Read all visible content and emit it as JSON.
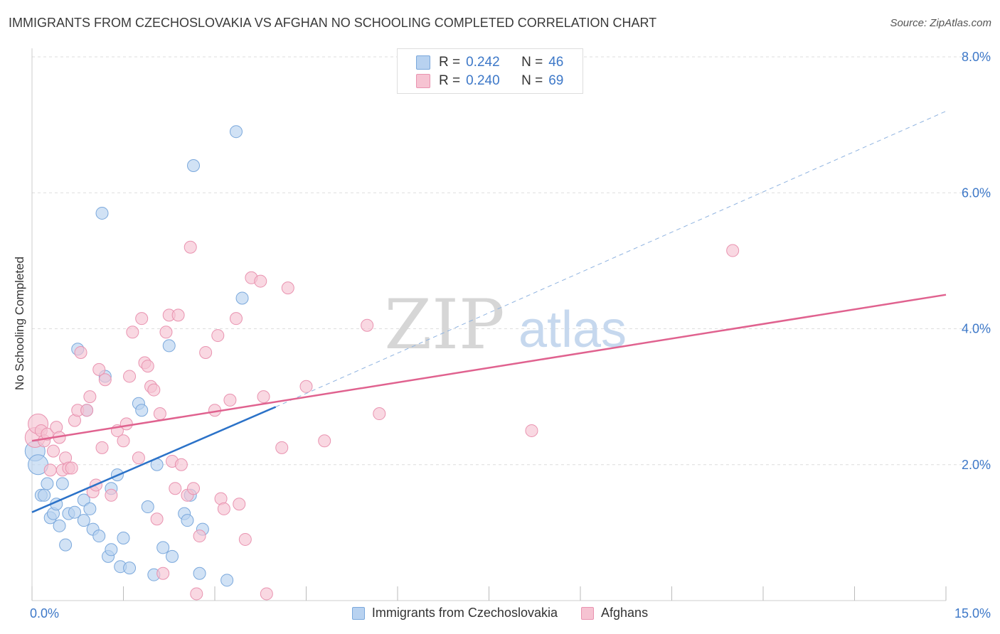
{
  "title": "IMMIGRANTS FROM CZECHOSLOVAKIA VS AFGHAN NO SCHOOLING COMPLETED CORRELATION CHART",
  "source": "Source: ZipAtlas.com",
  "watermark": {
    "zip": "ZIP",
    "atlas": "atlas"
  },
  "colors": {
    "blue_fill": "#b8d2f0",
    "blue_stroke": "#7aa8dc",
    "blue_line": "#2b72c8",
    "pink_fill": "#f6c3d2",
    "pink_stroke": "#e993b0",
    "pink_line": "#e0628f",
    "tick_text": "#3d78c8",
    "grid": "#dddddd"
  },
  "chart_data": {
    "type": "scatter",
    "xlabel": "",
    "ylabel": "No Schooling Completed",
    "xlim": [
      0,
      15
    ],
    "ylim": [
      0,
      8
    ],
    "x_tick_labels": [
      {
        "value": 0,
        "label": "0.0%"
      },
      {
        "value": 15,
        "label": "15.0%"
      }
    ],
    "y_tick_labels": [
      {
        "value": 2,
        "label": "2.0%"
      },
      {
        "value": 4,
        "label": "4.0%"
      },
      {
        "value": 6,
        "label": "6.0%"
      },
      {
        "value": 8,
        "label": "8.0%"
      }
    ],
    "grid": true,
    "legend_top": [
      {
        "r_label": "R =",
        "r_value": "0.242",
        "n_label": "N =",
        "n_value": "46"
      },
      {
        "r_label": "R =",
        "r_value": "0.240",
        "n_label": "N =",
        "n_value": "69"
      }
    ],
    "series": [
      {
        "name": "Immigrants from Czechoslovakia",
        "color": "blue",
        "points": [
          [
            0.05,
            2.2
          ],
          [
            0.1,
            2.0
          ],
          [
            0.15,
            1.55
          ],
          [
            0.2,
            1.55
          ],
          [
            0.25,
            1.72
          ],
          [
            0.3,
            1.22
          ],
          [
            0.35,
            1.28
          ],
          [
            0.4,
            1.42
          ],
          [
            0.45,
            1.1
          ],
          [
            0.5,
            1.72
          ],
          [
            0.55,
            0.82
          ],
          [
            0.6,
            1.28
          ],
          [
            0.7,
            1.3
          ],
          [
            0.75,
            3.7
          ],
          [
            0.85,
            1.18
          ],
          [
            0.85,
            1.48
          ],
          [
            0.9,
            2.8
          ],
          [
            0.95,
            1.35
          ],
          [
            1.0,
            1.05
          ],
          [
            1.1,
            0.95
          ],
          [
            1.15,
            5.7
          ],
          [
            1.2,
            3.3
          ],
          [
            1.25,
            0.65
          ],
          [
            1.3,
            0.75
          ],
          [
            1.3,
            1.65
          ],
          [
            1.4,
            1.85
          ],
          [
            1.45,
            0.5
          ],
          [
            1.5,
            0.92
          ],
          [
            1.6,
            0.48
          ],
          [
            1.75,
            2.9
          ],
          [
            1.8,
            2.8
          ],
          [
            1.9,
            1.38
          ],
          [
            2.0,
            0.38
          ],
          [
            2.05,
            2.0
          ],
          [
            2.15,
            0.78
          ],
          [
            2.25,
            3.75
          ],
          [
            2.3,
            0.65
          ],
          [
            2.5,
            1.28
          ],
          [
            2.55,
            1.18
          ],
          [
            2.6,
            1.55
          ],
          [
            2.65,
            6.4
          ],
          [
            2.75,
            0.4
          ],
          [
            2.8,
            1.05
          ],
          [
            3.2,
            0.3
          ],
          [
            3.35,
            6.9
          ],
          [
            3.45,
            4.45
          ]
        ],
        "trend": {
          "x0": 0,
          "y0": 1.3,
          "x1": 4.0,
          "y1": 2.85
        }
      },
      {
        "name": "Afghans",
        "color": "pink",
        "points": [
          [
            0.05,
            2.4
          ],
          [
            0.1,
            2.6
          ],
          [
            0.15,
            2.5
          ],
          [
            0.2,
            2.35
          ],
          [
            0.25,
            2.45
          ],
          [
            0.3,
            1.92
          ],
          [
            0.35,
            2.2
          ],
          [
            0.4,
            2.55
          ],
          [
            0.45,
            2.4
          ],
          [
            0.5,
            1.92
          ],
          [
            0.55,
            2.1
          ],
          [
            0.6,
            1.95
          ],
          [
            0.65,
            1.95
          ],
          [
            0.7,
            2.65
          ],
          [
            0.75,
            2.8
          ],
          [
            0.8,
            3.65
          ],
          [
            0.9,
            2.8
          ],
          [
            0.95,
            3.0
          ],
          [
            1.0,
            1.6
          ],
          [
            1.05,
            1.7
          ],
          [
            1.1,
            3.4
          ],
          [
            1.15,
            2.25
          ],
          [
            1.2,
            3.25
          ],
          [
            1.3,
            1.55
          ],
          [
            1.4,
            2.5
          ],
          [
            1.5,
            2.35
          ],
          [
            1.55,
            2.6
          ],
          [
            1.6,
            3.3
          ],
          [
            1.65,
            3.95
          ],
          [
            1.75,
            2.1
          ],
          [
            1.8,
            4.15
          ],
          [
            1.85,
            3.5
          ],
          [
            1.9,
            3.45
          ],
          [
            1.95,
            3.15
          ],
          [
            2.0,
            3.1
          ],
          [
            2.05,
            1.2
          ],
          [
            2.1,
            2.75
          ],
          [
            2.15,
            0.4
          ],
          [
            2.2,
            3.95
          ],
          [
            2.25,
            4.2
          ],
          [
            2.3,
            2.05
          ],
          [
            2.35,
            1.65
          ],
          [
            2.4,
            4.2
          ],
          [
            2.45,
            2.0
          ],
          [
            2.55,
            1.55
          ],
          [
            2.6,
            5.2
          ],
          [
            2.65,
            1.65
          ],
          [
            2.7,
            0.1
          ],
          [
            2.75,
            0.95
          ],
          [
            2.85,
            3.65
          ],
          [
            3.0,
            2.8
          ],
          [
            3.05,
            3.9
          ],
          [
            3.1,
            1.5
          ],
          [
            3.15,
            1.35
          ],
          [
            3.25,
            2.95
          ],
          [
            3.35,
            4.15
          ],
          [
            3.4,
            1.42
          ],
          [
            3.5,
            0.9
          ],
          [
            3.6,
            4.75
          ],
          [
            3.75,
            4.7
          ],
          [
            3.8,
            3.0
          ],
          [
            3.85,
            0.1
          ],
          [
            4.1,
            2.25
          ],
          [
            4.2,
            4.6
          ],
          [
            4.5,
            3.15
          ],
          [
            4.8,
            2.35
          ],
          [
            5.5,
            4.05
          ],
          [
            5.7,
            2.75
          ],
          [
            8.2,
            2.5
          ],
          [
            11.5,
            5.15
          ]
        ],
        "trend": {
          "x0": 0,
          "y0": 2.35,
          "x1": 15,
          "y1": 4.5
        }
      }
    ],
    "blue_dashed_extension": {
      "x0": 4.0,
      "y0": 2.85,
      "x1": 15,
      "y1": 7.2
    }
  }
}
